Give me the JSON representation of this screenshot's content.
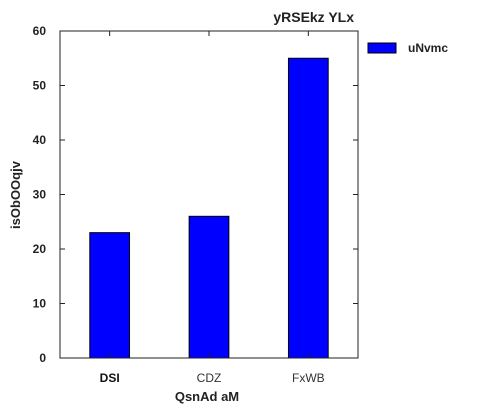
{
  "chart_data": {
    "type": "bar",
    "title": "yRSEkz YLx",
    "xlabel": "QsnAd aM",
    "ylabel": "isObOOqjv",
    "categories": [
      "DSI",
      "CDZ",
      "FxWB"
    ],
    "series": [
      {
        "name": "uNvmc",
        "values": [
          23,
          26,
          55
        ]
      }
    ],
    "ylim": [
      0,
      60
    ],
    "yticks": [
      0,
      10,
      20,
      30,
      40,
      50,
      60
    ],
    "grid": false,
    "legend": "top-right outside",
    "colors": {
      "bar": "#0000ff",
      "edge": "#000000",
      "axis": "#222222"
    }
  }
}
